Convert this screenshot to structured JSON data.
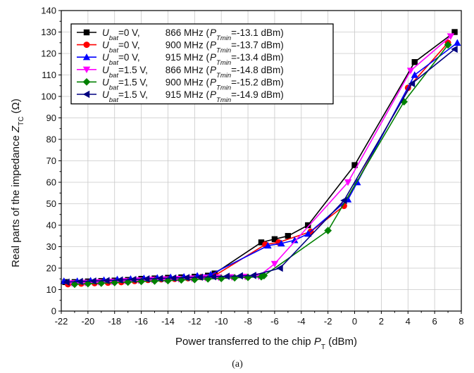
{
  "chart_data": {
    "type": "line",
    "xlabel_main": "Power transferred to the chip ",
    "xlabel_var": "P",
    "xlabel_sub": "T",
    "xlabel_unit": " (dBm)",
    "ylabel_main": "Real parts of the impedance ",
    "ylabel_var": "Z",
    "ylabel_sub": "TC",
    "ylabel_unit": " (Ω)",
    "caption": "(a)",
    "xlim": [
      -22,
      8
    ],
    "ylim": [
      0,
      140
    ],
    "xticks": [
      -22,
      -20,
      -18,
      -16,
      -14,
      -12,
      -10,
      -8,
      -6,
      -4,
      -2,
      0,
      2,
      4,
      6,
      8
    ],
    "yticks": [
      0,
      10,
      20,
      30,
      40,
      50,
      60,
      70,
      80,
      90,
      100,
      110,
      120,
      130,
      140
    ],
    "grid": true,
    "legend_position": "top-left",
    "series": [
      {
        "legend_var": "U",
        "legend_sub": "bat",
        "legend_cond": "=0 V,",
        "legend_freq": "866 MHz (",
        "legend_pvar": "P",
        "legend_psub": "Tmin",
        "legend_pval": "=-13.1 dBm)",
        "color": "#000000",
        "marker": "square",
        "x": [
          -21.7,
          -21,
          -20,
          -19,
          -18,
          -17,
          -16,
          -15,
          -14,
          -13,
          -12,
          -11,
          -10.5,
          -7,
          -6,
          -5,
          -3.5,
          0,
          4.5,
          7.5
        ],
        "y": [
          13.5,
          13.5,
          13.8,
          14,
          14.2,
          14.5,
          15,
          15.2,
          15.5,
          15.7,
          16,
          16.5,
          17.5,
          32,
          33.5,
          35,
          40,
          68,
          116,
          130
        ]
      },
      {
        "legend_var": "U",
        "legend_sub": "bat",
        "legend_cond": "=0 V,",
        "legend_freq": "900 MHz (",
        "legend_pvar": "P",
        "legend_psub": "Tmin",
        "legend_pval": "=-13.7 dBm)",
        "color": "#ff0000",
        "marker": "circle",
        "x": [
          -21.5,
          -20.5,
          -19.5,
          -18.5,
          -17.5,
          -16.5,
          -15.5,
          -14.5,
          -13.5,
          -12.5,
          -11.5,
          -10.5,
          -6.7,
          -5.7,
          -3.3,
          -0.8,
          4,
          7
        ],
        "y": [
          12.5,
          12.8,
          13,
          13.2,
          13.5,
          14,
          14.5,
          14.8,
          15,
          15.3,
          15.8,
          16.5,
          31,
          32,
          37,
          49,
          104,
          125
        ]
      },
      {
        "legend_var": "U",
        "legend_sub": "bat",
        "legend_cond": "=0 V,",
        "legend_freq": "915 MHz (",
        "legend_pvar": "P",
        "legend_psub": "Tmin",
        "legend_pval": "=-13.4 dBm)",
        "color": "#0000ff",
        "marker": "triangle-up",
        "x": [
          -21.8,
          -20.8,
          -19.8,
          -18.8,
          -17.8,
          -16.8,
          -15.8,
          -14.8,
          -13.8,
          -12.8,
          -11.8,
          -10.8,
          -6.5,
          -5.5,
          -4.5,
          -3.5,
          -0.5,
          0.2,
          4.5,
          7.7
        ],
        "y": [
          14,
          14,
          14.2,
          14.5,
          14.8,
          15,
          15.3,
          15.5,
          15.8,
          16,
          16.5,
          17,
          30.5,
          31.5,
          33,
          36,
          52,
          60,
          110,
          125
        ]
      },
      {
        "legend_var": "U",
        "legend_sub": "bat",
        "legend_cond": "=1.5 V,",
        "legend_freq": "866 MHz (",
        "legend_pvar": "P",
        "legend_psub": "Tmin",
        "legend_pval": "=-14.8 dBm)",
        "color": "#ff00ff",
        "marker": "triangle-down",
        "x": [
          -21.2,
          -20.2,
          -19.2,
          -18.2,
          -17.2,
          -16.2,
          -15.2,
          -14.2,
          -13.2,
          -12.2,
          -11.2,
          -10.2,
          -9.2,
          -8.2,
          -7.2,
          -6,
          -0.5,
          4.2,
          7.2
        ],
        "y": [
          13,
          13.2,
          13.5,
          13.7,
          14,
          14.3,
          14.6,
          14.8,
          15,
          15.2,
          15.5,
          15.7,
          15.8,
          16,
          16.2,
          22,
          60,
          112,
          128
        ]
      },
      {
        "legend_var": "U",
        "legend_sub": "bat",
        "legend_cond": "=1.5 V,",
        "legend_freq": "900 MHz (",
        "legend_pvar": "P",
        "legend_psub": "Tmin",
        "legend_pval": "=-15.2 dBm)",
        "color": "#008000",
        "marker": "diamond",
        "x": [
          -21,
          -20,
          -19,
          -18,
          -17,
          -16,
          -15,
          -14,
          -13,
          -12,
          -11,
          -10,
          -9,
          -8,
          -7,
          -6.8,
          -2,
          3.7,
          7
        ],
        "y": [
          12.5,
          12.8,
          13,
          13.3,
          13.5,
          13.8,
          14,
          14.2,
          14.5,
          14.7,
          15,
          15.2,
          15.5,
          15.7,
          16,
          16.5,
          37.5,
          97.5,
          124
        ]
      },
      {
        "legend_var": "U",
        "legend_sub": "bat",
        "legend_cond": "=1.5 V,",
        "legend_freq": "915 MHz (",
        "legend_pvar": "P",
        "legend_psub": "Tmin",
        "legend_pval": "=-14.9 dBm)",
        "color": "#000080",
        "marker": "triangle-left",
        "x": [
          -21.6,
          -20.6,
          -19.6,
          -18.6,
          -17.6,
          -16.6,
          -15.6,
          -14.6,
          -13.6,
          -12.6,
          -11.6,
          -10.6,
          -9.6,
          -8.6,
          -7.6,
          -5.6,
          -0.8,
          4.3,
          7.5
        ],
        "y": [
          13.5,
          13.8,
          14,
          14.2,
          14.5,
          14.7,
          15,
          15.2,
          15.4,
          15.6,
          15.8,
          16,
          16.2,
          16.4,
          16.6,
          20,
          51.5,
          106,
          122
        ]
      }
    ]
  }
}
